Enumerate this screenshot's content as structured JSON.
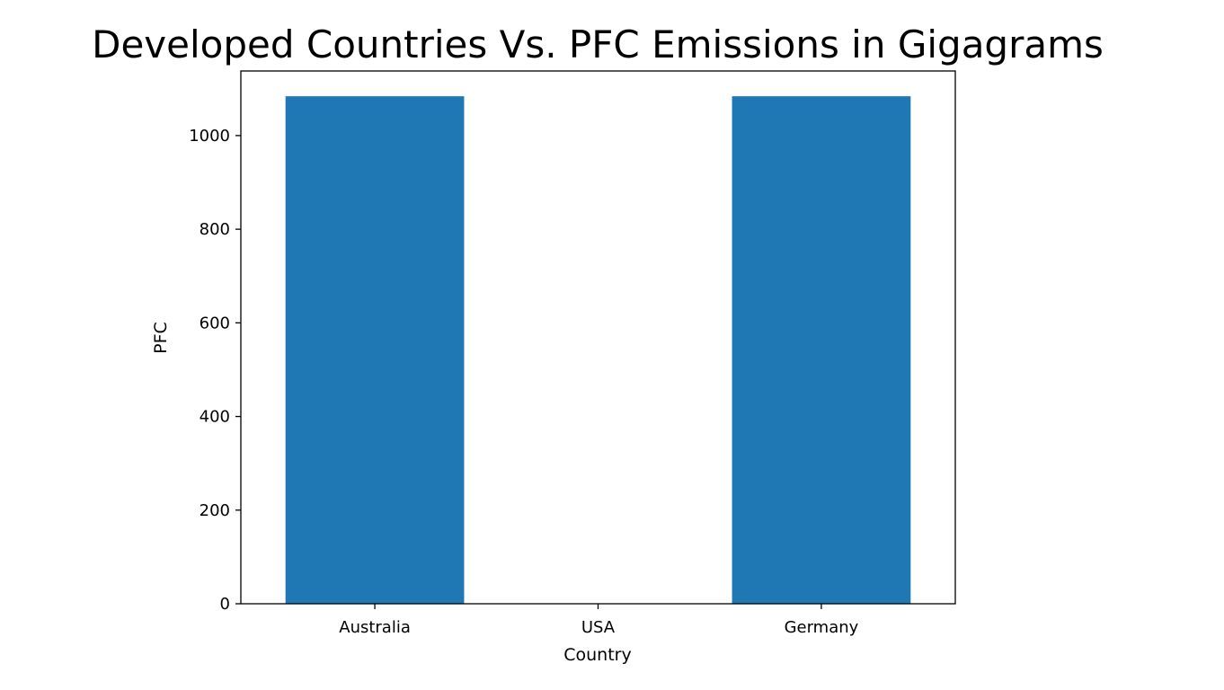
{
  "chart_data": {
    "type": "bar",
    "title": "Developed Countries Vs. PFC Emissions in Gigagrams",
    "xlabel": "Country",
    "ylabel": "PFC",
    "categories": [
      "Australia",
      "USA",
      "Germany"
    ],
    "values": [
      1084,
      0,
      1084
    ],
    "ylim": [
      0,
      1138
    ],
    "yticks": [
      0,
      200,
      400,
      600,
      800,
      1000
    ],
    "grid": false,
    "bar_color": "#1f77b4"
  }
}
